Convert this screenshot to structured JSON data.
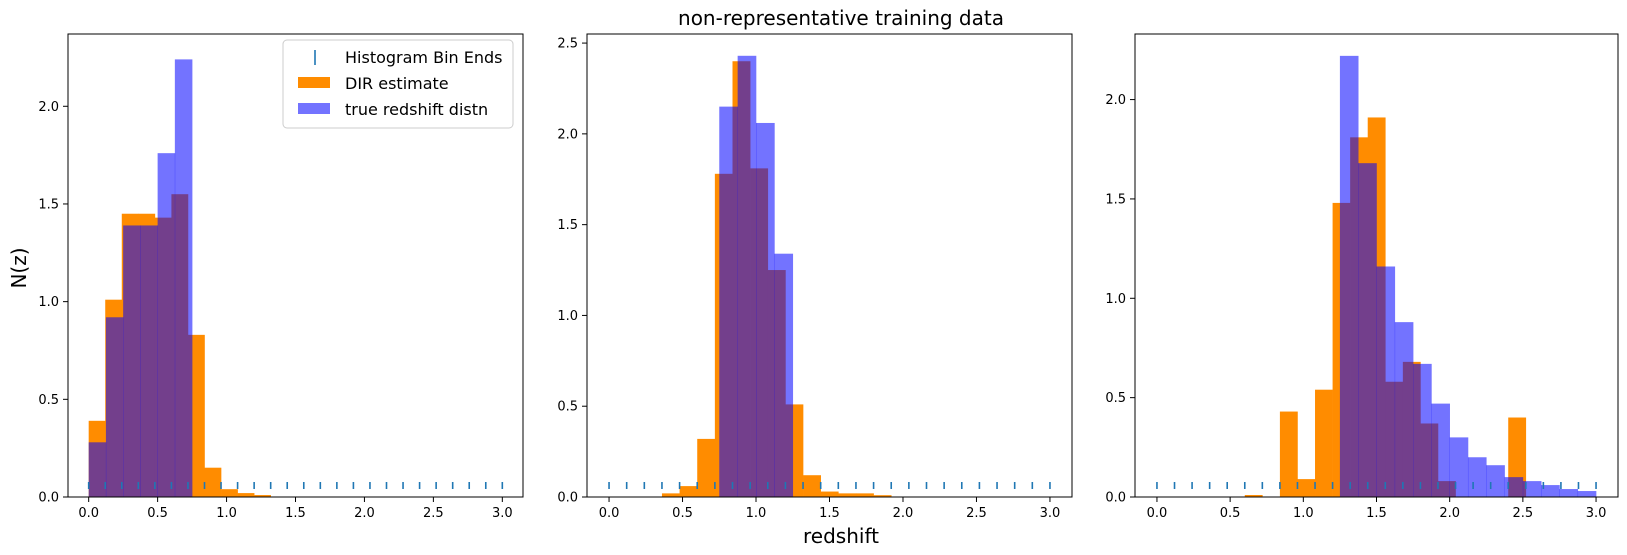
{
  "figure": {
    "title": "non-representative training data",
    "xlabel": "redshift",
    "ylabel": "N(z)"
  },
  "legend": {
    "placement": "top-right",
    "entries": [
      {
        "label": "Histogram Bin Ends",
        "marker": "tick",
        "color": "#1f77b4"
      },
      {
        "label": "DIR estimate",
        "marker": "patch",
        "color": "#ff8c00"
      },
      {
        "label": "true redshift distn",
        "marker": "patch",
        "color": "#0000ff"
      }
    ]
  },
  "colors": {
    "dir": "#ff8c00",
    "true": "#0000ff",
    "true_alpha": 0.55,
    "bin_ticks": "#1f77b4"
  },
  "chart_data": [
    {
      "type": "bar",
      "xlim": [
        -0.15,
        3.15
      ],
      "ylim": [
        0,
        2.37
      ],
      "xticks": [
        0.0,
        0.5,
        1.0,
        1.5,
        2.0,
        2.5,
        3.0
      ],
      "yticks": [
        0.0,
        0.5,
        1.0,
        1.5,
        2.0
      ],
      "series": [
        {
          "name": "DIR estimate",
          "edges": [
            0.0,
            0.12,
            0.24,
            0.36,
            0.48,
            0.6,
            0.72,
            0.84,
            0.96,
            1.08,
            1.2,
            1.32,
            1.44,
            1.56,
            1.68,
            1.8,
            1.92,
            2.04,
            2.16,
            2.28,
            2.4,
            2.52,
            2.64,
            2.76,
            2.88,
            3.0
          ],
          "values": [
            0.39,
            1.01,
            1.45,
            1.45,
            1.43,
            1.55,
            0.83,
            0.15,
            0.04,
            0.02,
            0.01,
            0.0,
            0.0,
            0.0,
            0.0,
            0.0,
            0.0,
            0.0,
            0.0,
            0.0,
            0.0,
            0.0,
            0.0,
            0.0,
            0.0
          ]
        },
        {
          "name": "true redshift distn",
          "edges": [
            0.0,
            0.125,
            0.25,
            0.375,
            0.5,
            0.625,
            0.75
          ],
          "values": [
            0.28,
            0.92,
            1.39,
            1.39,
            1.76,
            2.24
          ]
        }
      ],
      "bin_ends": [
        0.0,
        0.12,
        0.24,
        0.36,
        0.48,
        0.6,
        0.72,
        0.84,
        0.96,
        1.08,
        1.2,
        1.32,
        1.44,
        1.56,
        1.68,
        1.8,
        1.92,
        2.04,
        2.16,
        2.28,
        2.4,
        2.52,
        2.64,
        2.76,
        2.88,
        3.0
      ]
    },
    {
      "type": "bar",
      "xlim": [
        -0.15,
        3.15
      ],
      "ylim": [
        0,
        2.55
      ],
      "xticks": [
        0.0,
        0.5,
        1.0,
        1.5,
        2.0,
        2.5,
        3.0
      ],
      "yticks": [
        0.0,
        0.5,
        1.0,
        1.5,
        2.0,
        2.5
      ],
      "series": [
        {
          "name": "DIR estimate",
          "edges": [
            0.0,
            0.12,
            0.24,
            0.36,
            0.48,
            0.6,
            0.72,
            0.84,
            0.96,
            1.08,
            1.2,
            1.32,
            1.44,
            1.56,
            1.68,
            1.8,
            1.92,
            2.04,
            2.16,
            2.28,
            2.4,
            2.52,
            2.64,
            2.76,
            2.88,
            3.0
          ],
          "values": [
            0.0,
            0.0,
            0.0,
            0.02,
            0.06,
            0.32,
            1.78,
            2.4,
            1.81,
            1.25,
            0.51,
            0.12,
            0.03,
            0.02,
            0.02,
            0.01,
            0.0,
            0.0,
            0.0,
            0.0,
            0.0,
            0.0,
            0.0,
            0.0,
            0.0
          ]
        },
        {
          "name": "true redshift distn",
          "edges": [
            0.75,
            0.875,
            1.0,
            1.125,
            1.25
          ],
          "values": [
            2.15,
            2.43,
            2.06,
            1.34
          ]
        }
      ],
      "bin_ends": [
        0.0,
        0.12,
        0.24,
        0.36,
        0.48,
        0.6,
        0.72,
        0.84,
        0.96,
        1.08,
        1.2,
        1.32,
        1.44,
        1.56,
        1.68,
        1.8,
        1.92,
        2.04,
        2.16,
        2.28,
        2.4,
        2.52,
        2.64,
        2.76,
        2.88,
        3.0
      ]
    },
    {
      "type": "bar",
      "xlim": [
        -0.15,
        3.15
      ],
      "ylim": [
        0,
        2.33
      ],
      "xticks": [
        0.0,
        0.5,
        1.0,
        1.5,
        2.0,
        2.5,
        3.0
      ],
      "yticks": [
        0.0,
        0.5,
        1.0,
        1.5,
        2.0
      ],
      "series": [
        {
          "name": "DIR estimate",
          "edges": [
            0.0,
            0.12,
            0.24,
            0.36,
            0.48,
            0.6,
            0.72,
            0.84,
            0.96,
            1.08,
            1.2,
            1.32,
            1.44,
            1.56,
            1.68,
            1.8,
            1.92,
            2.04,
            2.16,
            2.28,
            2.4,
            2.52,
            2.64,
            2.76,
            2.88,
            3.0
          ],
          "values": [
            0.0,
            0.0,
            0.0,
            0.0,
            0.0,
            0.01,
            0.0,
            0.43,
            0.09,
            0.54,
            1.48,
            1.81,
            1.91,
            0.58,
            0.68,
            0.37,
            0.08,
            0.0,
            0.0,
            0.0,
            0.4,
            0.0,
            0.0,
            0.0,
            0.0
          ]
        },
        {
          "name": "true redshift distn",
          "edges": [
            1.25,
            1.375,
            1.5,
            1.625,
            1.75,
            1.875,
            2.0,
            2.125,
            2.25,
            2.375,
            2.5,
            2.625,
            2.75,
            2.875,
            3.0
          ],
          "values": [
            2.22,
            1.68,
            1.16,
            0.88,
            0.67,
            0.47,
            0.3,
            0.2,
            0.16,
            0.1,
            0.08,
            0.06,
            0.04,
            0.03
          ]
        }
      ],
      "bin_ends": [
        0.0,
        0.12,
        0.24,
        0.36,
        0.48,
        0.6,
        0.72,
        0.84,
        0.96,
        1.08,
        1.2,
        1.32,
        1.44,
        1.56,
        1.68,
        1.8,
        1.92,
        2.04,
        2.16,
        2.28,
        2.4,
        2.52,
        2.64,
        2.76,
        2.88,
        3.0
      ]
    }
  ]
}
